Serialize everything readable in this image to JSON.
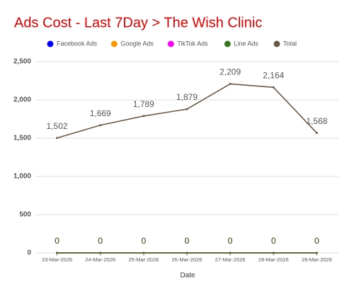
{
  "chart_data": {
    "type": "line",
    "title": "Ads Cost - Last 7Day > The Wish Clinic",
    "x_label": "Date",
    "categories": [
      "23-Mar-2026",
      "24-Mar-2026",
      "25-Mar-2026",
      "26-Mar-2026",
      "27-Mar-2026",
      "28-Mar-2026",
      "29-Mar-2026"
    ],
    "series": [
      {
        "name": "Facebook Ads",
        "color": "#0000ff",
        "values": [
          0,
          0,
          0,
          0,
          0,
          0,
          0
        ]
      },
      {
        "name": "Google Ads",
        "color": "#ff9900",
        "values": [
          0,
          0,
          0,
          0,
          0,
          0,
          0
        ]
      },
      {
        "name": "TikTok Ads",
        "color": "#ff00ff",
        "values": [
          0,
          0,
          0,
          0,
          0,
          0,
          0
        ]
      },
      {
        "name": "Line Ads",
        "color": "#38761d",
        "values": [
          0,
          0,
          0,
          0,
          0,
          0,
          0
        ]
      },
      {
        "name": "Total",
        "color": "#6b5a46",
        "values": [
          1502,
          1669,
          1789,
          1879,
          2209,
          2164,
          1568
        ],
        "value_labels": [
          "1,502",
          "1,669",
          "1,789",
          "1,879",
          "2,209",
          "2,164",
          "1,568"
        ]
      }
    ],
    "ylim": [
      0,
      2500
    ],
    "yticks": [
      0,
      500,
      {
        "value": 1000,
        "label": "1,000"
      },
      {
        "value": 1500,
        "label": "1,500"
      },
      {
        "value": 2000,
        "label": "2,000"
      },
      {
        "value": 2500,
        "label": "2,500"
      }
    ],
    "grid": true,
    "legend": "top"
  }
}
